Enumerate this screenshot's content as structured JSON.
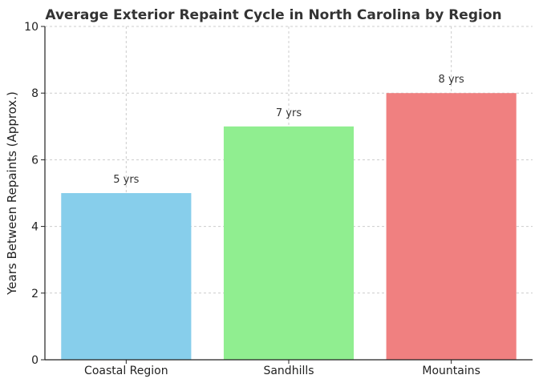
{
  "chart_data": {
    "type": "bar",
    "title": "Average Exterior Repaint Cycle in North Carolina by Region",
    "xlabel": "",
    "ylabel": "Years Between Repaints (Approx.)",
    "categories": [
      "Coastal Region",
      "Sandhills",
      "Mountains"
    ],
    "values": [
      5,
      7,
      8
    ],
    "data_labels": [
      "5 yrs",
      "7 yrs",
      "8 yrs"
    ],
    "colors": [
      "#87ceeb",
      "#90ee90",
      "#f08080"
    ],
    "ylim": [
      0,
      10
    ],
    "yticks": [
      "0",
      "2",
      "4",
      "6",
      "8",
      "10"
    ],
    "grid": true,
    "legend": "none"
  }
}
